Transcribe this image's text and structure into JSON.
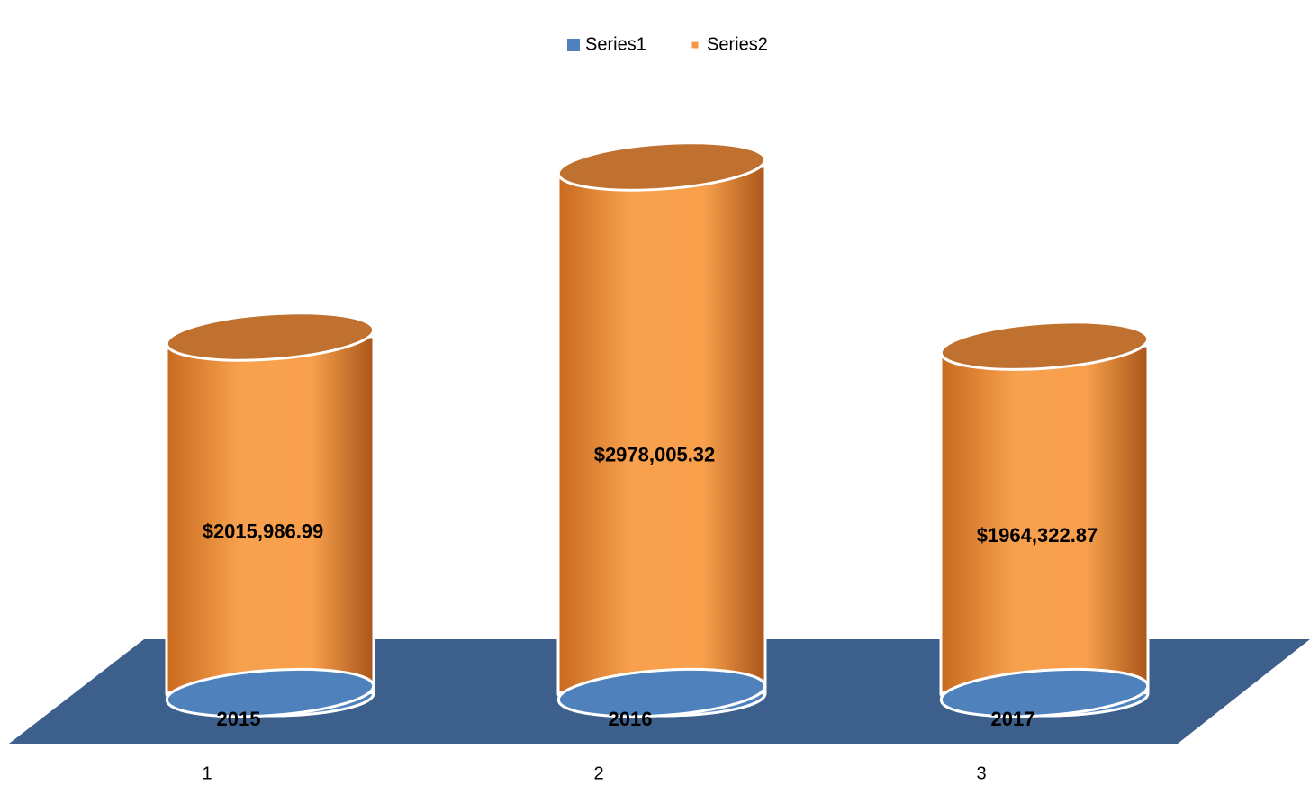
{
  "chart_data": {
    "type": "cylinder",
    "categories": [
      "1",
      "2",
      "3"
    ],
    "series": [
      {
        "name": "Series1",
        "color": "#4f81bd",
        "values": [
          2015,
          2016,
          2017
        ]
      },
      {
        "name": "Series2",
        "color": "#f79646",
        "values": [
          2015986.99,
          2978005.32,
          1964322.87
        ],
        "value_labels": [
          "$2015,986.99",
          "$2978,005.32",
          "$1964,322.87"
        ]
      }
    ],
    "floor_color": "#3c5f8c"
  }
}
